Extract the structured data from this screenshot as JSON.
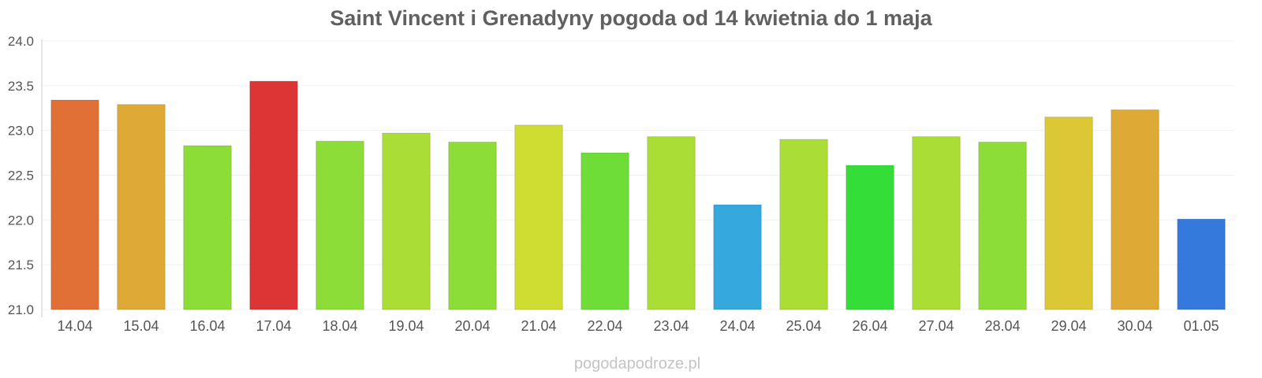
{
  "chart_data": {
    "type": "bar",
    "title": "Saint Vincent i Grenadyny pogoda od 14 kwietnia do 1 maja",
    "xlabel": "",
    "ylabel": "",
    "ylim": [
      21.0,
      24.0
    ],
    "yticks": [
      "21.0",
      "21.5",
      "22.0",
      "22.5",
      "23.0",
      "23.5",
      "24.0"
    ],
    "grid": true,
    "categories": [
      "14.04",
      "15.04",
      "16.04",
      "17.04",
      "18.04",
      "19.04",
      "20.04",
      "21.04",
      "22.04",
      "23.04",
      "24.04",
      "25.04",
      "26.04",
      "27.04",
      "28.04",
      "29.04",
      "30.04",
      "01.05"
    ],
    "values": [
      23.34,
      23.29,
      22.83,
      23.55,
      22.88,
      22.97,
      22.87,
      23.06,
      22.75,
      22.93,
      22.17,
      22.9,
      22.61,
      22.93,
      22.87,
      23.15,
      23.23,
      22.01
    ],
    "colors": [
      "#e07035",
      "#dfa935",
      "#8ddd38",
      "#dd3535",
      "#8ddd38",
      "#aadd35",
      "#8ddd38",
      "#cfdd33",
      "#6edd38",
      "#aadd35",
      "#35a8dd",
      "#aadd35",
      "#35dd38",
      "#aadd35",
      "#8ddd38",
      "#dcc835",
      "#dfa935",
      "#3579dd"
    ]
  },
  "watermark": "pogodapodroze.pl"
}
